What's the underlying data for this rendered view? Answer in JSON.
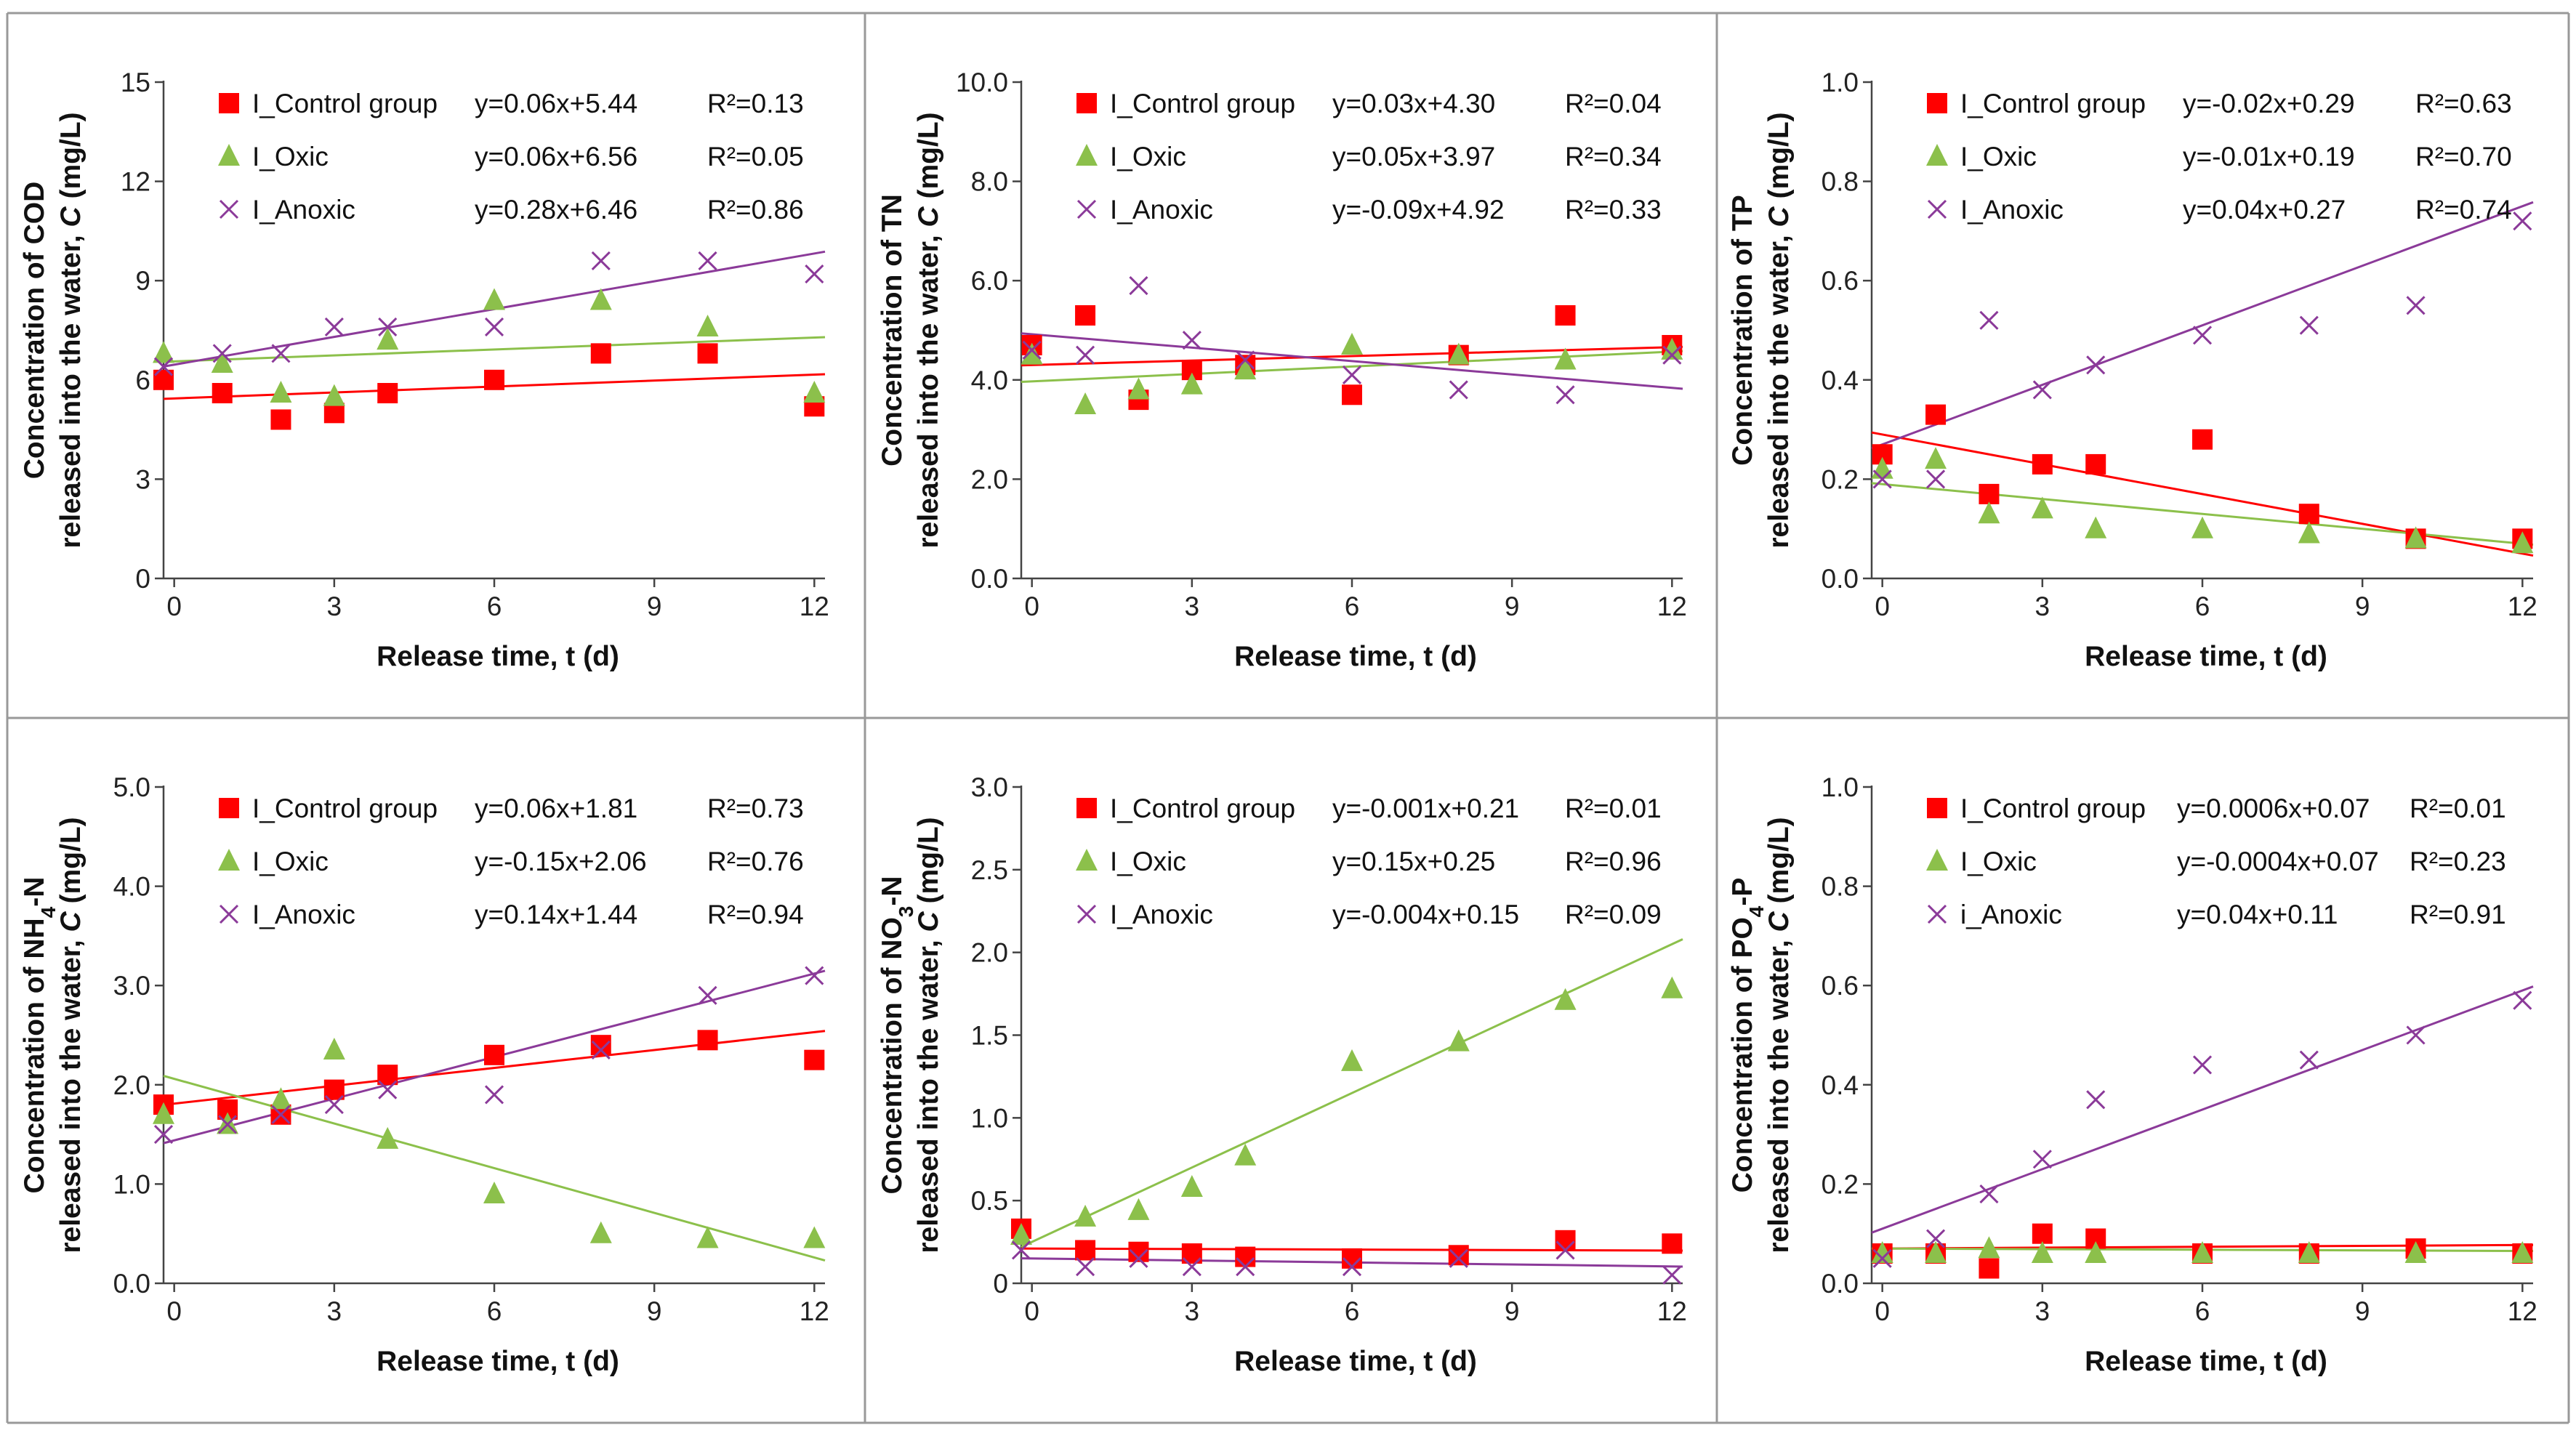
{
  "x_axis": {
    "ticks": [
      0,
      3,
      6,
      9,
      12
    ],
    "range": [
      -0.2,
      12.2
    ],
    "label": "Release time, t (d)"
  },
  "colors": {
    "control": "#ff0000",
    "oxic": "#8cc04b",
    "anoxic": "#8b3a99",
    "frame": "#999999",
    "axis": "#444444"
  },
  "series_names": [
    "I_Control group",
    "I_Oxic",
    "I_Anoxic"
  ],
  "chart_data": [
    {
      "type": "scatter",
      "y_title_line1_prefix": "Concentration of COD",
      "y_title_line1_sub": "",
      "y_title_line1_suffix": "",
      "y_title_line2_prefix": "released into the water, ",
      "y_title_italic": "C",
      "y_title_line2_suffix": " (mg/L)",
      "xlabel": "Release time, t (d)",
      "yticks": [
        "0",
        "3",
        "6",
        "9",
        "12",
        "15"
      ],
      "ylim": [
        0,
        15
      ],
      "series": [
        {
          "name": "I_Control group",
          "equation": "y=0.06x+5.44",
          "r2": "R²=0.13",
          "x": [
            -0.2,
            0.9,
            2,
            3,
            4,
            6,
            8,
            10,
            12
          ],
          "y": [
            6.0,
            5.6,
            4.8,
            5.0,
            5.6,
            6.0,
            6.8,
            6.8,
            5.2
          ]
        },
        {
          "name": "I_Oxic",
          "equation": "y=0.06x+6.56",
          "r2": "R²=0.05",
          "x": [
            -0.2,
            0.9,
            2,
            3,
            4,
            6,
            8,
            10,
            12
          ],
          "y": [
            6.8,
            6.5,
            5.6,
            5.5,
            7.2,
            8.4,
            8.4,
            7.6,
            5.6
          ]
        },
        {
          "name": "I_Anoxic",
          "equation": "y=0.28x+6.46",
          "r2": "R²=0.86",
          "x": [
            -0.2,
            0.9,
            2,
            3,
            4,
            6,
            8,
            10,
            12
          ],
          "y": [
            6.4,
            6.8,
            6.8,
            7.6,
            7.6,
            7.6,
            9.6,
            9.6,
            9.2
          ]
        }
      ]
    },
    {
      "type": "scatter",
      "y_title_line1_prefix": "Concentration of TN",
      "y_title_line1_sub": "",
      "y_title_line1_suffix": "",
      "y_title_line2_prefix": "released into the water, ",
      "y_title_italic": "C",
      "y_title_line2_suffix": " (mg/L)",
      "xlabel": "Release time, t (d)",
      "yticks": [
        "0.0",
        "2.0",
        "4.0",
        "6.0",
        "8.0",
        "10.0"
      ],
      "ylim": [
        0,
        10
      ],
      "series": [
        {
          "name": "I_Control group",
          "equation": "y=0.03x+4.30",
          "r2": "R²=0.04",
          "x": [
            0,
            1,
            2,
            3,
            4,
            6,
            8,
            10,
            12
          ],
          "y": [
            4.7,
            5.3,
            3.6,
            4.2,
            4.3,
            3.7,
            4.5,
            5.3,
            4.7
          ]
        },
        {
          "name": "I_Oxic",
          "equation": "y=0.05x+3.97",
          "r2": "R²=0.34",
          "x": [
            0,
            1,
            2,
            3,
            4,
            6,
            8,
            10,
            12
          ],
          "y": [
            4.5,
            3.5,
            3.8,
            3.9,
            4.2,
            4.7,
            4.5,
            4.4,
            4.6
          ]
        },
        {
          "name": "I_Anoxic",
          "equation": "y=-0.09x+4.92",
          "r2": "R²=0.33",
          "x": [
            0,
            1,
            2,
            3,
            4,
            6,
            8,
            10,
            12
          ],
          "y": [
            4.6,
            4.5,
            5.9,
            4.8,
            4.4,
            4.1,
            3.8,
            3.7,
            4.5
          ]
        }
      ]
    },
    {
      "type": "scatter",
      "y_title_line1_prefix": "Concentration of TP",
      "y_title_line1_sub": "",
      "y_title_line1_suffix": "",
      "y_title_line2_prefix": "released into the water, ",
      "y_title_italic": "C",
      "y_title_line2_suffix": " (mg/L)",
      "xlabel": "Release time, t (d)",
      "yticks": [
        "0.0",
        "0.2",
        "0.4",
        "0.6",
        "0.8",
        "1.0"
      ],
      "ylim": [
        0,
        1
      ],
      "series": [
        {
          "name": "I_Control group",
          "equation": "y=-0.02x+0.29",
          "r2": "R²=0.63",
          "x": [
            0,
            1,
            2,
            3,
            4,
            6,
            8,
            10,
            12
          ],
          "y": [
            0.25,
            0.33,
            0.17,
            0.23,
            0.23,
            0.28,
            0.13,
            0.08,
            0.08
          ]
        },
        {
          "name": "I_Oxic",
          "equation": "y=-0.01x+0.19",
          "r2": "R²=0.70",
          "x": [
            0,
            1,
            2,
            3,
            4,
            6,
            8,
            10,
            12
          ],
          "y": [
            0.22,
            0.24,
            0.13,
            0.14,
            0.1,
            0.1,
            0.09,
            0.08,
            0.07
          ]
        },
        {
          "name": "I_Anoxic",
          "equation": "y=0.04x+0.27",
          "r2": "R²=0.74",
          "x": [
            0,
            1,
            2,
            3,
            4,
            6,
            8,
            10,
            12
          ],
          "y": [
            0.2,
            0.2,
            0.52,
            0.38,
            0.43,
            0.49,
            0.51,
            0.55,
            0.72
          ]
        }
      ]
    },
    {
      "type": "scatter",
      "y_title_line1_prefix": "Concentration of NH",
      "y_title_line1_sub": "4",
      "y_title_line1_suffix": "-N",
      "y_title_line2_prefix": "released into the water, ",
      "y_title_italic": "C",
      "y_title_line2_suffix": " (mg/L)",
      "xlabel": "Release time, t (d)",
      "yticks": [
        "0.0",
        "1.0",
        "2.0",
        "3.0",
        "4.0",
        "5.0"
      ],
      "ylim": [
        0,
        5
      ],
      "series": [
        {
          "name": "I_Control group",
          "equation": "y=0.06x+1.81",
          "r2": "R²=0.73",
          "x": [
            -0.2,
            1,
            2,
            3,
            4,
            6,
            8,
            10,
            12
          ],
          "y": [
            1.8,
            1.75,
            1.7,
            1.95,
            2.1,
            2.3,
            2.4,
            2.45,
            2.25
          ]
        },
        {
          "name": "I_Oxic",
          "equation": "y=-0.15x+2.06",
          "r2": "R²=0.76",
          "x": [
            -0.2,
            1,
            2,
            3,
            4,
            6,
            8,
            10,
            12
          ],
          "y": [
            1.7,
            1.6,
            1.85,
            2.35,
            1.45,
            0.9,
            0.5,
            0.45,
            0.45
          ]
        },
        {
          "name": "I_Anoxic",
          "equation": "y=0.14x+1.44",
          "r2": "R²=0.94",
          "x": [
            -0.2,
            1,
            2,
            3,
            4,
            6,
            8,
            10,
            12
          ],
          "y": [
            1.5,
            1.6,
            1.7,
            1.8,
            1.95,
            1.9,
            2.35,
            2.9,
            3.1
          ]
        }
      ]
    },
    {
      "type": "scatter",
      "y_title_line1_prefix": "Concentration of NO",
      "y_title_line1_sub": "3",
      "y_title_line1_suffix": "-N",
      "y_title_line2_prefix": "released into the water, ",
      "y_title_italic": "C",
      "y_title_line2_suffix": " (mg/L)",
      "xlabel": "Release time, t (d)",
      "yticks": [
        "0",
        "0.5",
        "1.0",
        "1.5",
        "2.0",
        "2.5",
        "3.0"
      ],
      "ylim": [
        0,
        3
      ],
      "series": [
        {
          "name": "I_Control group",
          "equation": "y=-0.001x+0.21",
          "r2": "R²=0.01",
          "x": [
            -0.2,
            1,
            2,
            3,
            4,
            6,
            8,
            10,
            12
          ],
          "y": [
            0.33,
            0.2,
            0.19,
            0.18,
            0.16,
            0.15,
            0.17,
            0.26,
            0.24
          ]
        },
        {
          "name": "I_Oxic",
          "equation": "y=0.15x+0.25",
          "r2": "R²=0.96",
          "x": [
            -0.2,
            1,
            2,
            3,
            4,
            6,
            8,
            10,
            12
          ],
          "y": [
            0.29,
            0.4,
            0.44,
            0.58,
            0.77,
            1.34,
            1.46,
            1.71,
            1.78
          ]
        },
        {
          "name": "I_Anoxic",
          "equation": "y=-0.004x+0.15",
          "r2": "R²=0.09",
          "x": [
            -0.2,
            1,
            2,
            3,
            4,
            6,
            8,
            10,
            12
          ],
          "y": [
            0.2,
            0.1,
            0.15,
            0.1,
            0.1,
            0.1,
            0.15,
            0.2,
            0.05
          ]
        }
      ]
    },
    {
      "type": "scatter",
      "y_title_line1_prefix": "Concentration of PO",
      "y_title_line1_sub": "4",
      "y_title_line1_suffix": "-P",
      "y_title_line2_prefix": "released into the water, ",
      "y_title_italic": "C",
      "y_title_line2_suffix": " (mg/L)",
      "xlabel": "Release time, t (d)",
      "yticks": [
        "0.0",
        "0.2",
        "0.4",
        "0.6",
        "0.8",
        "1.0"
      ],
      "ylim": [
        0,
        1
      ],
      "series": [
        {
          "name": "I_Control group",
          "equation": "y=0.0006x+0.07",
          "r2": "R²=0.01",
          "x": [
            0,
            1,
            2,
            3,
            4,
            6,
            8,
            10,
            12
          ],
          "y": [
            0.06,
            0.06,
            0.03,
            0.1,
            0.09,
            0.06,
            0.06,
            0.07,
            0.06
          ]
        },
        {
          "name": "I_Oxic",
          "equation": "y=-0.0004x+0.07",
          "r2": "R²=0.23",
          "x": [
            0,
            1,
            2,
            3,
            4,
            6,
            8,
            10,
            12
          ],
          "y": [
            0.06,
            0.06,
            0.07,
            0.06,
            0.06,
            0.06,
            0.06,
            0.06,
            0.06
          ]
        },
        {
          "name": "i_Anoxic",
          "equation": "y=0.04x+0.11",
          "r2": "R²=0.91",
          "x": [
            0,
            1,
            2,
            3,
            4,
            6,
            8,
            10,
            12
          ],
          "y": [
            0.05,
            0.09,
            0.18,
            0.25,
            0.37,
            0.44,
            0.45,
            0.5,
            0.57
          ]
        }
      ]
    }
  ]
}
